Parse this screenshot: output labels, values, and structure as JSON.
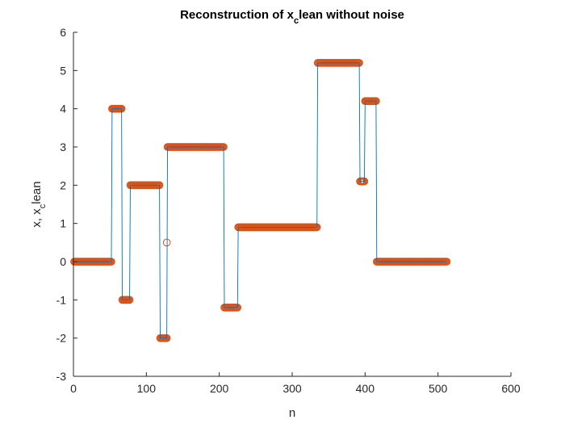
{
  "chart_data": {
    "type": "line",
    "title": "Reconstruction of x_clean without noise",
    "title_parts": {
      "before": "Reconstruction of x",
      "subscript": "c",
      "after": "lean without noise"
    },
    "xlabel": "n",
    "ylabel_parts": {
      "before": "x, x",
      "subscript": "c",
      "after": "lean"
    },
    "xlim": [
      0,
      600
    ],
    "ylim": [
      -3,
      6
    ],
    "xticks": [
      "0",
      "100",
      "200",
      "300",
      "400",
      "500",
      "600"
    ],
    "yticks": [
      "-3",
      "-2",
      "-1",
      "0",
      "1",
      "2",
      "3",
      "4",
      "5",
      "6"
    ],
    "grid": false,
    "n_points": 512,
    "segments": [
      {
        "start": 1,
        "end": 52,
        "value": 0
      },
      {
        "start": 53,
        "end": 66,
        "value": 4
      },
      {
        "start": 67,
        "end": 77,
        "value": -1
      },
      {
        "start": 78,
        "end": 118,
        "value": 2
      },
      {
        "start": 119,
        "end": 128,
        "value": -2
      },
      {
        "start": 129,
        "end": 206,
        "value": 3
      },
      {
        "start": 207,
        "end": 225,
        "value": -1.2
      },
      {
        "start": 226,
        "end": 334,
        "value": 0.9
      },
      {
        "start": 335,
        "end": 392,
        "value": 5.2
      },
      {
        "start": 393,
        "end": 399,
        "value": 2.1
      },
      {
        "start": 400,
        "end": 415,
        "value": 4.2
      },
      {
        "start": 416,
        "end": 512,
        "value": 0
      }
    ],
    "outliers": [
      {
        "x": 128,
        "y": 0.5
      }
    ],
    "series": [
      {
        "name": "x",
        "style": "line",
        "color": "#0072BD"
      },
      {
        "name": "x_clean",
        "style": "circle markers",
        "color": "#D95319"
      }
    ]
  }
}
